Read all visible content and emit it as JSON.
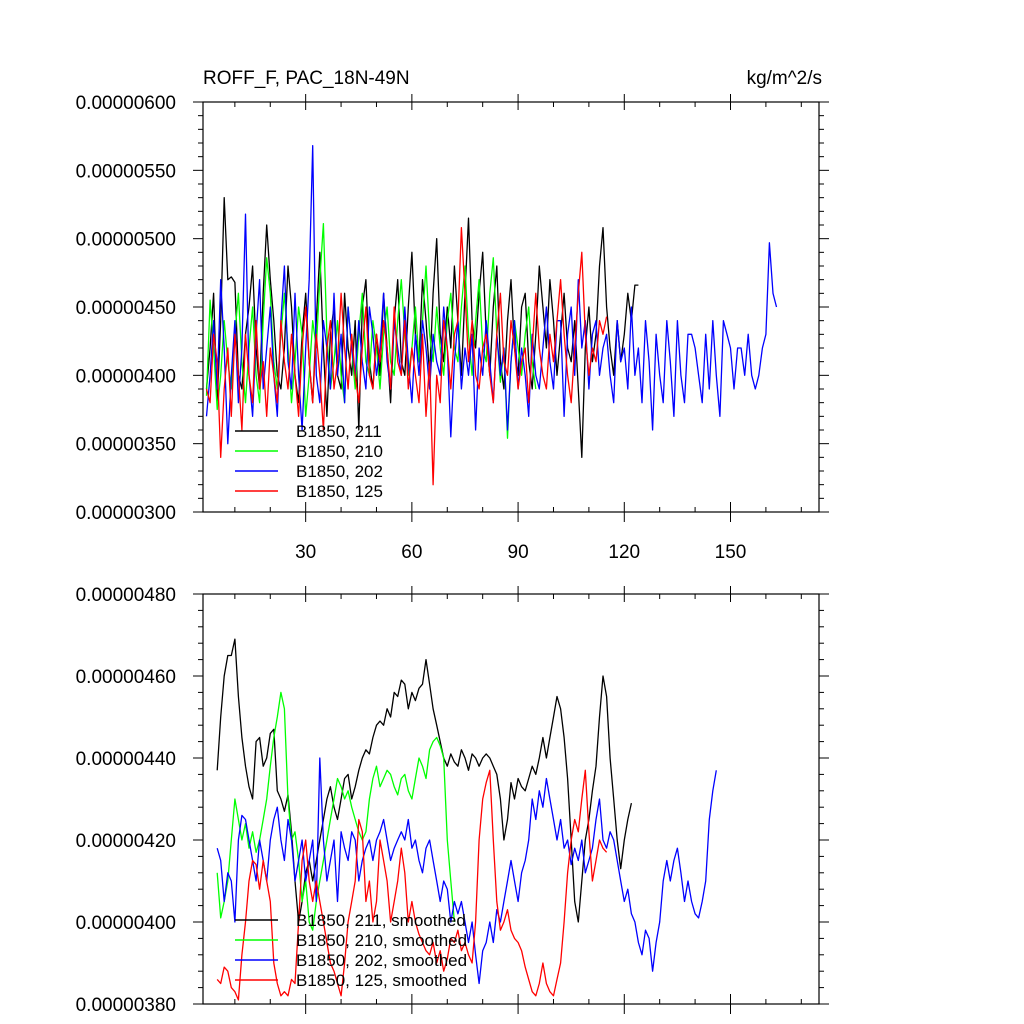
{
  "chart_data": [
    {
      "type": "line",
      "title_left": "ROFF_F, PAC_18N-49N",
      "title_right": "kg/m^2/s",
      "xlabel": "",
      "ylabel": "",
      "xlim": [
        1,
        175
      ],
      "ylim": [
        3e-06,
        6e-06
      ],
      "xticks": [
        30,
        60,
        90,
        120,
        150
      ],
      "xtick_labels": [
        "30",
        "60",
        "90",
        "120",
        "150"
      ],
      "yticks": [
        3e-06,
        3.5e-06,
        4e-06,
        4.5e-06,
        5e-06,
        5.5e-06,
        6e-06
      ],
      "ytick_labels": [
        "0.00000300",
        "0.00000350",
        "0.00000400",
        "0.00000450",
        "0.00000500",
        "0.00000550",
        "0.00000600"
      ],
      "legend_position": "bottom-left",
      "series": [
        {
          "name": "B1850, 211",
          "color": "#000000",
          "x_start": 2,
          "values": [
            3.9,
            4.2,
            4.6,
            3.8,
            4.4,
            5.3,
            4.7,
            4.72,
            4.68,
            4.0,
            3.9,
            4.3,
            4.5,
            4.8,
            4.2,
            3.9,
            4.6,
            5.1,
            4.7,
            4.4,
            4.0,
            3.9,
            4.2,
            4.8,
            4.5,
            4.0,
            3.8,
            4.3,
            4.6,
            4.1,
            3.8,
            4.4,
            4.9,
            4.2,
            3.7,
            4.3,
            4.5,
            4.0,
            3.9,
            4.6,
            4.2,
            4.0,
            4.4,
            3.6,
            4.5,
            4.7,
            4.1,
            3.9,
            4.3,
            4.0,
            4.6,
            4.2,
            3.8,
            4.4,
            4.7,
            4.1,
            4.0,
            4.5,
            4.9,
            4.3,
            4.1,
            4.7,
            4.4,
            4.0,
            4.6,
            5.0,
            4.3,
            4.1,
            4.5,
            4.2,
            4.8,
            4.4,
            4.0,
            4.6,
            5.15,
            4.4,
            4.2,
            4.6,
            4.9,
            4.3,
            4.0,
            4.5,
            4.8,
            4.1,
            3.9,
            4.4,
            4.7,
            4.2,
            4.0,
            4.5,
            4.6,
            4.1,
            3.9,
            4.3,
            4.8,
            4.5,
            4.2,
            4.7,
            4.4,
            4.0,
            4.3,
            4.6,
            4.2,
            4.1,
            4.4,
            3.9,
            3.4,
            4.2,
            4.5,
            4.1,
            4.3,
            4.8,
            5.08,
            4.5,
            4.2,
            4.0,
            4.4,
            4.1,
            4.3,
            4.6,
            4.4,
            4.66,
            4.66
          ]
        },
        {
          "name": "B1850, 210",
          "color": "#00ff00",
          "x_start": 2,
          "values": [
            3.85,
            4.55,
            4.2,
            3.75,
            4.0,
            4.4,
            4.1,
            3.9,
            4.3,
            4.6,
            4.1,
            3.8,
            4.2,
            4.5,
            4.0,
            3.8,
            4.4,
            4.86,
            4.6,
            4.1,
            3.9,
            4.3,
            4.6,
            4.2,
            3.8,
            4.1,
            4.5,
            4.3,
            3.7,
            4.0,
            4.4,
            4.2,
            4.7,
            5.11,
            4.3,
            3.9,
            4.1,
            4.4,
            4.0,
            3.8,
            4.5,
            4.2,
            3.9,
            4.3,
            4.6,
            4.1,
            4.0,
            4.4,
            4.2,
            3.9,
            4.3,
            4.5,
            4.1,
            4.0,
            4.4,
            4.7,
            4.3,
            4.0,
            4.2,
            4.5,
            4.1,
            4.4,
            4.8,
            4.3,
            4.1,
            4.5,
            4.2,
            4.0,
            4.4,
            4.6,
            4.2,
            4.1,
            4.5,
            4.8,
            4.3,
            4.0,
            4.4,
            4.7,
            4.2,
            4.1,
            4.6,
            4.86,
            4.3,
            3.95,
            4.2,
            3.54,
            4.1,
            4.4,
            4.2,
            4.0,
            4.3,
            4.5,
            4.1,
            3.9
          ]
        },
        {
          "name": "B1850, 202",
          "color": "#0000ff",
          "x_start": 2,
          "values": [
            3.7,
            4.0,
            4.4,
            3.9,
            4.7,
            4.2,
            3.5,
            4.0,
            4.4,
            3.8,
            4.2,
            5.18,
            4.0,
            3.7,
            4.3,
            4.7,
            3.9,
            4.2,
            4.5,
            4.0,
            3.7,
            4.4,
            4.8,
            4.1,
            3.9,
            4.6,
            4.0,
            3.6,
            4.2,
            4.7,
            5.68,
            4.0,
            3.8,
            4.4,
            4.2,
            3.9,
            4.6,
            4.0,
            4.3,
            3.8,
            4.5,
            4.2,
            4.0,
            4.4,
            4.1,
            3.9,
            4.5,
            4.3,
            4.0,
            4.2,
            4.6,
            4.1,
            3.9,
            4.4,
            4.2,
            4.0,
            4.5,
            4.1,
            3.8,
            4.3,
            4.0,
            4.4,
            4.2,
            3.9,
            4.3,
            4.1,
            4.0,
            4.5,
            4.2,
            3.55,
            4.1,
            4.4,
            3.9,
            4.2,
            4.0,
            4.3,
            3.6,
            4.2,
            4.0,
            4.4,
            4.1,
            3.8,
            4.3,
            4.0,
            4.2,
            3.6,
            4.1,
            4.4,
            3.9,
            4.2,
            4.0,
            3.7,
            4.3,
            4.0,
            3.9,
            4.2,
            4.5,
            4.1,
            3.9,
            4.4,
            4.4,
            3.7,
            4.3,
            4.5,
            4.0,
            4.7,
            4.2,
            4.4,
            3.9,
            4.3,
            4.4,
            4.0,
            4.2,
            4.3,
            4.0,
            3.8,
            4.4,
            4.1,
            4.2,
            3.9,
            4.5,
            4.0,
            4.2,
            3.8,
            4.4,
            4.1,
            3.6,
            4.3,
            4.0,
            3.8,
            4.4,
            4.1,
            3.7,
            4.4,
            4.0,
            3.8,
            4.3,
            4.3,
            4.2,
            4.0,
            3.8,
            4.3,
            3.9,
            4.4,
            4.0,
            3.7,
            4.4,
            4.3,
            4.2,
            3.9,
            4.2,
            4.2,
            4.0,
            4.3,
            4.0,
            3.9,
            4.0,
            4.2,
            4.3,
            4.97,
            4.6,
            4.5
          ]
        },
        {
          "name": "B1850, 125",
          "color": "#ff0000",
          "x_start": 2,
          "values": [
            3.9,
            3.8,
            4.3,
            4.1,
            3.4,
            3.9,
            4.2,
            3.7,
            4.3,
            4.0,
            3.6,
            4.3,
            4.0,
            3.8,
            4.4,
            3.9,
            4.1,
            3.7,
            4.2,
            4.0,
            3.8,
            4.4,
            4.1,
            3.9,
            4.3,
            4.0,
            3.7,
            4.2,
            4.5,
            4.1,
            3.8,
            4.3,
            4.0,
            3.6,
            4.2,
            4.4,
            3.9,
            4.1,
            4.6,
            4.2,
            3.9,
            4.3,
            4.0,
            3.8,
            4.2,
            4.5,
            4.0,
            3.9,
            4.3,
            4.1,
            4.4,
            4.2,
            3.9,
            4.5,
            4.1,
            4.0,
            4.4,
            3.9,
            4.2,
            4.0,
            3.8,
            4.3,
            3.7,
            4.1,
            3.2,
            4.0,
            3.8,
            4.4,
            4.2,
            3.9,
            4.3,
            4.4,
            5.08,
            4.6,
            4.1,
            4.4,
            4.0,
            3.9,
            4.2,
            4.3,
            4.0,
            3.8,
            4.3,
            4.6,
            4.1,
            4.0,
            4.4,
            4.2,
            3.9,
            4.1,
            4.2,
            3.8,
            4.2,
            4.6,
            4.2,
            4.0,
            3.9,
            4.3,
            4.1,
            4.4,
            4.7,
            4.3,
            4.0,
            3.8,
            4.2,
            4.6,
            4.9,
            4.3,
            4.0,
            4.2,
            4.1,
            4.4,
            4.3,
            4.43
          ]
        }
      ]
    },
    {
      "type": "line",
      "title_left": "",
      "title_right": "",
      "xlabel": "",
      "ylabel": "",
      "xlim": [
        1,
        175
      ],
      "ylim": [
        3.8e-06,
        4.8e-06
      ],
      "xticks": [
        30,
        60,
        90,
        120,
        150
      ],
      "xtick_labels": [],
      "yticks": [
        3.8e-06,
        4e-06,
        4.2e-06,
        4.4e-06,
        4.6e-06,
        4.8e-06
      ],
      "ytick_labels": [
        "0.00000380",
        "0.00000400",
        "0.00000420",
        "0.00000440",
        "0.00000460",
        "0.00000480"
      ],
      "legend_position": "bottom-left",
      "series": [
        {
          "name": "B1850, 211, smoothed",
          "color": "#000000",
          "x_start": 5,
          "values": [
            4.37,
            4.5,
            4.6,
            4.65,
            4.65,
            4.69,
            4.55,
            4.45,
            4.38,
            4.33,
            4.3,
            4.44,
            4.45,
            4.38,
            4.4,
            4.46,
            4.47,
            4.32,
            4.3,
            4.27,
            4.31,
            4.22,
            4.1,
            4.0,
            4.05,
            4.12,
            4.15,
            4.1,
            4.15,
            4.2,
            4.25,
            4.3,
            4.33,
            4.28,
            4.25,
            4.3,
            4.35,
            4.36,
            4.3,
            4.33,
            4.37,
            4.4,
            4.42,
            4.41,
            4.45,
            4.48,
            4.49,
            4.48,
            4.52,
            4.5,
            4.56,
            4.55,
            4.59,
            4.58,
            4.52,
            4.56,
            4.54,
            4.57,
            4.58,
            4.64,
            4.58,
            4.52,
            4.48,
            4.44,
            4.4,
            4.38,
            4.41,
            4.39,
            4.38,
            4.42,
            4.4,
            4.37,
            4.41,
            4.4,
            4.38,
            4.4,
            4.41,
            4.4,
            4.38,
            4.36,
            4.3,
            4.2,
            4.25,
            4.34,
            4.3,
            4.35,
            4.33,
            4.32,
            4.35,
            4.38,
            4.36,
            4.4,
            4.45,
            4.4,
            4.45,
            4.5,
            4.55,
            4.52,
            4.45,
            4.35,
            4.2,
            4.05,
            4.0,
            4.1,
            4.2,
            4.25,
            4.32,
            4.38,
            4.5,
            4.6,
            4.55,
            4.4,
            4.3,
            4.2,
            4.13,
            4.2,
            4.25,
            4.29
          ]
        },
        {
          "name": "B1850, 210, smoothed",
          "color": "#00ff00",
          "x_start": 5,
          "values": [
            4.12,
            4.01,
            4.05,
            4.1,
            4.2,
            4.3,
            4.25,
            4.2,
            4.24,
            4.18,
            4.22,
            4.17,
            4.2,
            4.25,
            4.3,
            4.38,
            4.45,
            4.5,
            4.56,
            4.52,
            4.3,
            4.2,
            4.22,
            4.15,
            4.05,
            4.1,
            4.0,
            3.98,
            4.05,
            4.1,
            4.15,
            4.2,
            4.25,
            4.3,
            4.35,
            4.33,
            4.3,
            4.32,
            4.28,
            4.25,
            4.22,
            4.2,
            4.22,
            4.3,
            4.35,
            4.38,
            4.33,
            4.35,
            4.37,
            4.36,
            4.33,
            4.31,
            4.35,
            4.36,
            4.32,
            4.3,
            4.35,
            4.4,
            4.38,
            4.35,
            4.42,
            4.44,
            4.45,
            4.43,
            4.4,
            4.2,
            4.1,
            4.0
          ]
        },
        {
          "name": "B1850, 202, smoothed",
          "color": "#0000ff",
          "x_start": 5,
          "values": [
            4.18,
            4.15,
            4.05,
            4.12,
            4.1,
            4.0,
            4.2,
            4.26,
            4.25,
            4.2,
            4.15,
            4.1,
            4.2,
            4.15,
            4.1,
            4.2,
            4.25,
            4.28,
            4.2,
            4.15,
            4.25,
            4.2,
            4.1,
            4.15,
            4.2,
            4.1,
            4.15,
            4.2,
            4.05,
            4.4,
            4.2,
            4.1,
            4.15,
            4.2,
            4.05,
            4.22,
            4.18,
            4.15,
            4.22,
            4.2,
            4.1,
            4.15,
            4.18,
            4.2,
            4.15,
            4.2,
            4.22,
            4.25,
            4.2,
            4.15,
            4.18,
            4.2,
            4.22,
            4.2,
            4.25,
            4.18,
            4.2,
            4.15,
            4.12,
            4.18,
            4.2,
            4.15,
            4.1,
            4.05,
            4.1,
            4.08,
            4.0,
            4.05,
            4.02,
            4.05,
            4.0,
            3.95,
            4.0,
            3.92,
            3.85,
            3.93,
            3.95,
            4.0,
            3.95,
            4.03,
            4.0,
            4.05,
            4.1,
            4.15,
            4.1,
            4.05,
            4.12,
            4.15,
            4.2,
            4.3,
            4.25,
            4.32,
            4.28,
            4.35,
            4.3,
            4.25,
            4.2,
            4.25,
            4.18,
            4.2,
            4.14,
            4.18,
            4.15,
            4.2,
            4.12,
            4.15,
            4.18,
            4.25,
            4.3,
            4.2,
            4.18,
            4.22,
            4.2,
            4.15,
            4.1,
            4.05,
            4.08,
            4.02,
            4.0,
            3.95,
            3.92,
            3.98,
            3.96,
            3.88,
            3.95,
            4.0,
            4.1,
            4.15,
            4.1,
            4.15,
            4.18,
            4.12,
            4.05,
            4.1,
            4.05,
            4.02,
            4.01,
            4.05,
            4.1,
            4.25,
            4.32,
            4.37
          ]
        },
        {
          "name": "B1850, 125, smoothed",
          "color": "#ff0000",
          "x_start": 5,
          "values": [
            3.86,
            3.85,
            3.89,
            3.88,
            3.84,
            3.83,
            3.81,
            3.92,
            4.0,
            4.1,
            4.15,
            4.14,
            4.08,
            4.15,
            4.1,
            4.05,
            3.9,
            3.85,
            3.82,
            3.83,
            3.82,
            3.86,
            3.85,
            4.0,
            4.15,
            4.2,
            4.1,
            4.05,
            4.1,
            4.05,
            4.0,
            3.95,
            3.9,
            3.88,
            3.85,
            3.82,
            3.9,
            4.0,
            4.05,
            4.1,
            4.25,
            4.22,
            4.05,
            4.1,
            4.0,
            4.05,
            4.2,
            4.15,
            4.1,
            4.0,
            4.05,
            4.1,
            4.18,
            4.12,
            4.0,
            4.05,
            4.0,
            3.97,
            3.95,
            3.93,
            3.92,
            3.95,
            3.9,
            3.93,
            3.88,
            3.91,
            3.96,
            3.95,
            3.98,
            3.93,
            3.95,
            3.92,
            3.9,
            4.0,
            4.2,
            4.3,
            4.34,
            4.37,
            4.2,
            4.05,
            3.98,
            4.0,
            4.03,
            3.98,
            3.96,
            3.95,
            3.93,
            3.89,
            3.86,
            3.83,
            3.82,
            3.85,
            3.9,
            3.85,
            3.83,
            3.82,
            3.86,
            3.9,
            4.0,
            4.12,
            4.2,
            4.25,
            4.22,
            4.3,
            4.37,
            4.22,
            4.1,
            4.15,
            4.2,
            4.18,
            4.17
          ]
        }
      ]
    }
  ]
}
